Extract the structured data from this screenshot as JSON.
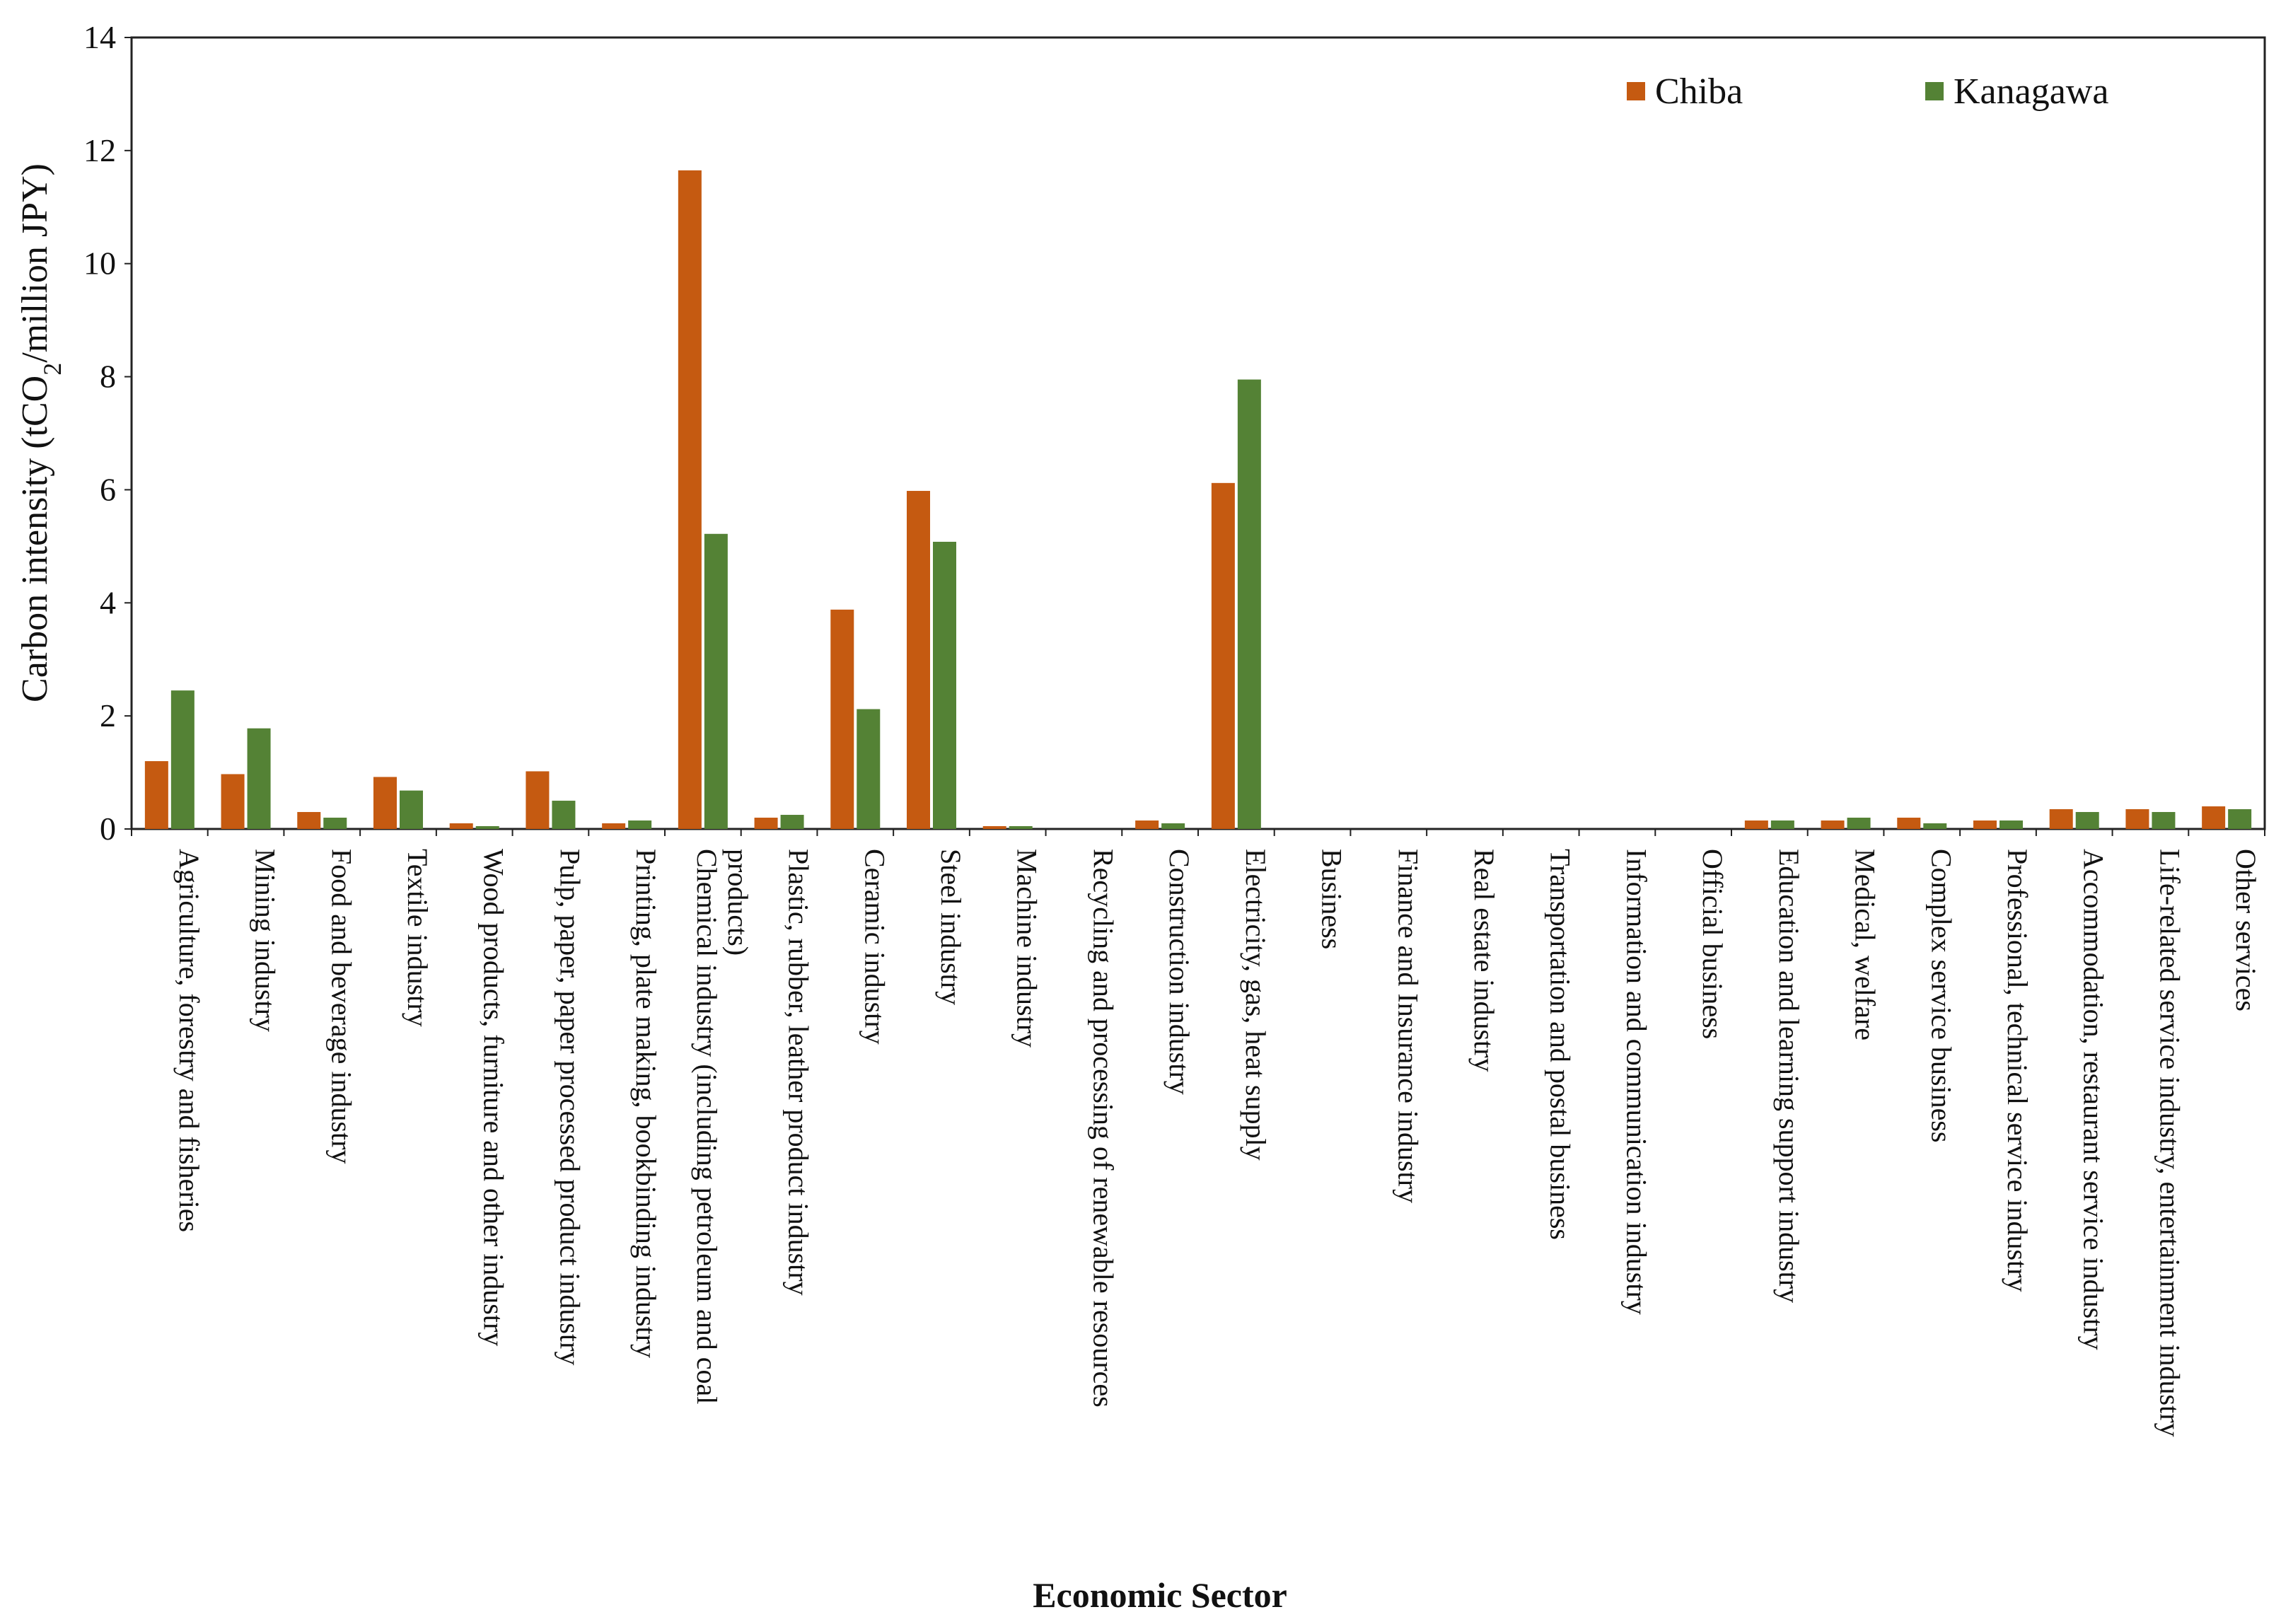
{
  "chart_data": {
    "type": "bar",
    "title": "",
    "xlabel": "Economic Sector",
    "ylabel_main": "Carbon intensity (tCO",
    "ylabel_sub": "2",
    "ylabel_tail": "/million JPY)",
    "ylim": [
      0,
      14
    ],
    "yticks": [
      "0",
      "2",
      "4",
      "6",
      "8",
      "10",
      "12",
      "14"
    ],
    "legend_position": "top-right",
    "categories": [
      [
        "Agriculture, forestry and fisheries"
      ],
      [
        "Mining industry"
      ],
      [
        "Food and beverage industry"
      ],
      [
        "Textile industry"
      ],
      [
        "Wood products, furniture and other industry"
      ],
      [
        "Pulp, paper, paper processed product industry"
      ],
      [
        "Printing, plate making, bookbinding industry"
      ],
      [
        "Chemical industry (including petroleum and coal",
        "products)"
      ],
      [
        "Plastic, rubber, leather product industry"
      ],
      [
        "Ceramic industry"
      ],
      [
        "Steel industry"
      ],
      [
        "Machine industry"
      ],
      [
        "Recycling and processing of renewable resources"
      ],
      [
        "Construction industry"
      ],
      [
        "Electricity, gas, heat supply"
      ],
      [
        "Business"
      ],
      [
        "Finance and Insurance industry"
      ],
      [
        "Real estate  industry"
      ],
      [
        "Transportation and postal business"
      ],
      [
        "Information and communication industry"
      ],
      [
        "Official business"
      ],
      [
        "Education and learning support industry"
      ],
      [
        "Medical, welfare"
      ],
      [
        "Complex service business"
      ],
      [
        "Professional, technical service industry"
      ],
      [
        "Accommodation, restaurant service industry"
      ],
      [
        "Life-related service industry, entertainment industry"
      ],
      [
        "Other services"
      ]
    ],
    "series": [
      {
        "name": "Chiba",
        "color": "#C55A11",
        "values": [
          1.2,
          0.97,
          0.3,
          0.92,
          0.1,
          1.02,
          0.1,
          11.65,
          0.2,
          3.88,
          5.98,
          0.05,
          0,
          0.15,
          6.12,
          0,
          0,
          0,
          0,
          0,
          0,
          0.15,
          0.15,
          0.2,
          0.15,
          0.35,
          0.35,
          0.4
        ]
      },
      {
        "name": "Kanagawa",
        "color": "#548235",
        "values": [
          2.45,
          1.78,
          0.2,
          0.68,
          0.05,
          0.5,
          0.15,
          5.22,
          0.25,
          2.12,
          5.08,
          0.05,
          0,
          0.1,
          7.95,
          0,
          0,
          0,
          0,
          0,
          0,
          0.15,
          0.2,
          0.1,
          0.15,
          0.3,
          0.3,
          0.35
        ]
      }
    ]
  }
}
